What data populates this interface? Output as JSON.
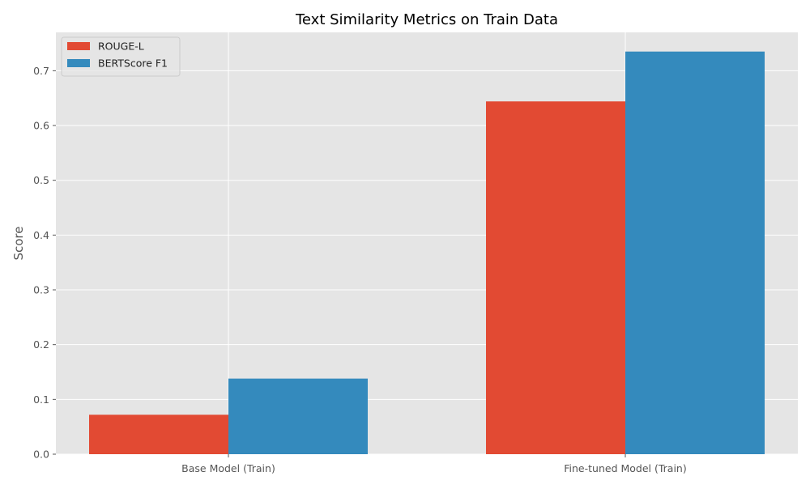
{
  "chart_data": {
    "type": "bar",
    "title": "Text Similarity Metrics on Train Data",
    "xlabel": "",
    "ylabel": "Score",
    "categories": [
      "Base Model (Train)",
      "Fine-tuned Model (Train)"
    ],
    "series": [
      {
        "name": "ROUGE-L",
        "values": [
          0.072,
          0.644
        ],
        "color": "#e24a33"
      },
      {
        "name": "BERTScore F1",
        "values": [
          0.138,
          0.735
        ],
        "color": "#348abd"
      }
    ],
    "ylim": [
      0,
      0.77
    ],
    "yticks": [
      0.0,
      0.1,
      0.2,
      0.3,
      0.4,
      0.5,
      0.6,
      0.7
    ],
    "ytick_labels": [
      "0.0",
      "0.1",
      "0.2",
      "0.3",
      "0.4",
      "0.5",
      "0.6",
      "0.7"
    ],
    "grid": true,
    "legend_position": "top-left",
    "style": {
      "plot_background": "#e5e5e5",
      "grid_color": "#ffffff",
      "tick_label_color": "#555555",
      "title_color": "#000000"
    }
  }
}
